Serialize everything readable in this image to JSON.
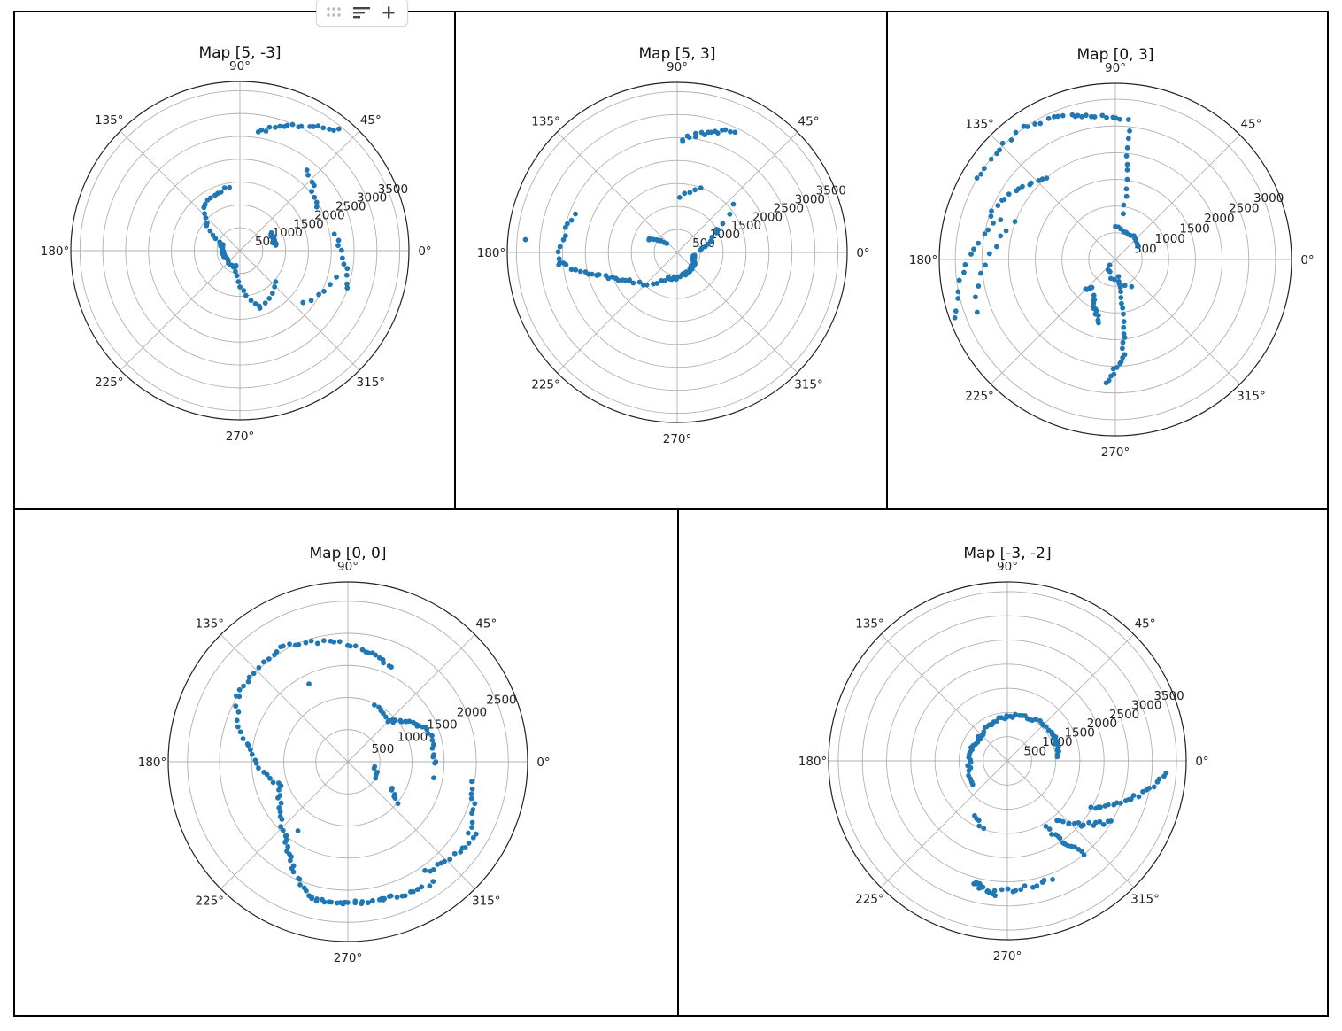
{
  "toolbar": {
    "items": [
      "drag-handle",
      "sort",
      "add"
    ]
  },
  "colors": {
    "points": "#1f77b4",
    "grid": "#b0b0b0",
    "border": "#000000"
  },
  "chart_data": [
    {
      "type": "scatter",
      "projection": "polar",
      "title": "Map [5, -3]",
      "rmax": 3700,
      "rticks": [
        500,
        1000,
        1500,
        2000,
        2500,
        3000,
        3500
      ],
      "angle_ticks": [
        "0°",
        "45°",
        "90°",
        "135°",
        "180°",
        "225°",
        "270°",
        "315°"
      ],
      "segments": [
        {
          "a": [
            255,
            200
          ],
          "r": [
            350,
            350
          ],
          "n": 9
        },
        {
          "a": [
            200,
            160
          ],
          "r": [
            350,
            420
          ],
          "n": 14
        },
        {
          "a": [
            160,
            130
          ],
          "r": [
            420,
            1250
          ],
          "n": 10
        },
        {
          "a": [
            130,
            100
          ],
          "r": [
            1250,
            1400
          ],
          "n": 9
        },
        {
          "a": [
            255,
            290
          ],
          "r": [
            350,
            1300
          ],
          "n": 10
        },
        {
          "a": [
            290,
            320
          ],
          "r": [
            1300,
            1050
          ],
          "n": 6
        },
        {
          "a": [
            8,
            30
          ],
          "r": [
            770,
            780
          ],
          "n": 12
        },
        {
          "a": [
            345,
            320
          ],
          "r": [
            2200,
            1800
          ],
          "n": 6
        },
        {
          "a": [
            10,
            -20
          ],
          "r": [
            2100,
            2500
          ],
          "n": 10
        },
        {
          "a": [
            82,
            50
          ],
          "r": [
            2600,
            3400
          ],
          "n": 18
        },
        {
          "a": [
            50,
            30
          ],
          "r": [
            2300,
            1900
          ],
          "n": 8
        }
      ]
    },
    {
      "type": "scatter",
      "projection": "polar",
      "title": "Map [5, 3]",
      "rmax": 3700,
      "rticks": [
        500,
        1000,
        1500,
        2000,
        2500,
        3000,
        3500
      ],
      "angle_ticks": [
        "0°",
        "45°",
        "90°",
        "135°",
        "180°",
        "225°",
        "270°",
        "315°"
      ],
      "segments": [
        {
          "a": [
            350,
            330
          ],
          "r": [
            350,
            400
          ],
          "n": 8
        },
        {
          "a": [
            330,
            290
          ],
          "r": [
            420,
            500
          ],
          "n": 10
        },
        {
          "a": [
            290,
            250
          ],
          "r": [
            500,
            600
          ],
          "n": 10
        },
        {
          "a": [
            250,
            210
          ],
          "r": [
            600,
            1200
          ],
          "n": 10
        },
        {
          "a": [
            210,
            195
          ],
          "r": [
            1200,
            1800
          ],
          "n": 10
        },
        {
          "a": [
            195,
            185
          ],
          "r": [
            1800,
            2600
          ],
          "n": 10
        },
        {
          "a": [
            185,
            160
          ],
          "r": [
            2600,
            2400
          ],
          "n": 10
        },
        {
          "a": [
            5,
            30
          ],
          "r": [
            500,
            1000
          ],
          "n": 8
        },
        {
          "a": [
            30,
            40
          ],
          "r": [
            1000,
            1600
          ],
          "n": 4
        },
        {
          "a": [
            88,
            70
          ],
          "r": [
            1200,
            1500
          ],
          "n": 5
        },
        {
          "a": [
            88,
            65
          ],
          "r": [
            2450,
            2900
          ],
          "n": 16
        },
        {
          "a": [
            140,
            155
          ],
          "r": [
            300,
            700
          ],
          "n": 8
        },
        {
          "a": [
            175,
            178
          ],
          "r": [
            3300,
            3300
          ],
          "n": 1
        }
      ]
    },
    {
      "type": "scatter",
      "projection": "polar",
      "title": "Map [0, 3]",
      "rmax": 3300,
      "rticks": [
        500,
        1000,
        1500,
        2000,
        2500,
        3000
      ],
      "angle_ticks": [
        "0°",
        "45°",
        "90°",
        "135°",
        "180°",
        "225°",
        "270°",
        "315°"
      ],
      "segments": [
        {
          "a": [
            225,
            300
          ],
          "r": [
            150,
            600
          ],
          "n": 8
        },
        {
          "a": [
            30,
            90
          ],
          "r": [
            500,
            600
          ],
          "n": 12
        },
        {
          "a": [
            80,
            85
          ],
          "r": [
            900,
            2600
          ],
          "n": 12
        },
        {
          "a": [
            88,
            105
          ],
          "r": [
            2600,
            2800
          ],
          "n": 10
        },
        {
          "a": [
            105,
            125
          ],
          "r": [
            2800,
            3000
          ],
          "n": 10
        },
        {
          "a": [
            125,
            150
          ],
          "r": [
            3000,
            3000
          ],
          "n": 10
        },
        {
          "a": [
            130,
            160
          ],
          "r": [
            2000,
            2500
          ],
          "n": 14
        },
        {
          "a": [
            160,
            200
          ],
          "r": [
            2300,
            3200
          ],
          "n": 14
        },
        {
          "a": [
            160,
            200
          ],
          "r": [
            2000,
            2800
          ],
          "n": 10
        },
        {
          "a": [
            280,
            275
          ],
          "r": [
            300,
            1800
          ],
          "n": 15
        },
        {
          "a": [
            275,
            265
          ],
          "r": [
            1800,
            2300
          ],
          "n": 10
        },
        {
          "a": [
            255,
            240
          ],
          "r": [
            1200,
            800
          ],
          "n": 12
        },
        {
          "a": [
            230,
            225
          ],
          "r": [
            700,
            800
          ],
          "n": 6
        }
      ]
    },
    {
      "type": "scatter",
      "projection": "polar",
      "title": "Map [0, 0]",
      "rmax": 2800,
      "rticks": [
        500,
        1000,
        1500,
        2000,
        2500
      ],
      "angle_ticks": [
        "0°",
        "45°",
        "90°",
        "135°",
        "180°",
        "225°",
        "270°",
        "315°"
      ],
      "segments": [
        {
          "a": [
            350,
            330
          ],
          "r": [
            420,
            500
          ],
          "n": 5
        },
        {
          "a": [
            330,
            320
          ],
          "r": [
            780,
            1000
          ],
          "n": 6
        },
        {
          "a": [
            350,
            0
          ],
          "r": [
            1350,
            1350
          ],
          "n": 4
        },
        {
          "a": [
            0,
            25
          ],
          "r": [
            1350,
            1350
          ],
          "n": 10
        },
        {
          "a": [
            25,
            45
          ],
          "r": [
            1300,
            900
          ],
          "n": 14
        },
        {
          "a": [
            45,
            65
          ],
          "r": [
            900,
            1000
          ],
          "n": 6
        },
        {
          "a": [
            65,
            80
          ],
          "r": [
            1600,
            1750
          ],
          "n": 8
        },
        {
          "a": [
            80,
            120
          ],
          "r": [
            1750,
            2050
          ],
          "n": 16
        },
        {
          "a": [
            120,
            150
          ],
          "r": [
            2050,
            2000
          ],
          "n": 12
        },
        {
          "a": [
            150,
            170
          ],
          "r": [
            2000,
            1600
          ],
          "n": 8
        },
        {
          "a": [
            170,
            200
          ],
          "r": [
            1600,
            1100
          ],
          "n": 12
        },
        {
          "a": [
            200,
            230
          ],
          "r": [
            1100,
            1500
          ],
          "n": 12
        },
        {
          "a": [
            230,
            255
          ],
          "r": [
            1500,
            2200
          ],
          "n": 18
        },
        {
          "a": [
            255,
            285
          ],
          "r": [
            2200,
            2200
          ],
          "n": 22
        },
        {
          "a": [
            285,
            305
          ],
          "r": [
            2200,
            2300
          ],
          "n": 12
        },
        {
          "a": [
            305,
            330
          ],
          "r": [
            2100,
            2300
          ],
          "n": 14
        },
        {
          "a": [
            330,
            350
          ],
          "r": [
            2200,
            1950
          ],
          "n": 10
        }
      ]
    },
    {
      "type": "scatter",
      "projection": "polar",
      "title": "Map [-3, -2]",
      "rmax": 3700,
      "rticks": [
        500,
        1000,
        1500,
        2000,
        2500,
        3000,
        3500
      ],
      "angle_ticks": [
        "0°",
        "45°",
        "90°",
        "135°",
        "180°",
        "225°",
        "270°",
        "315°"
      ],
      "segments": [
        {
          "a": [
            5,
            30
          ],
          "r": [
            1050,
            1100
          ],
          "n": 12
        },
        {
          "a": [
            30,
            90
          ],
          "r": [
            1100,
            920
          ],
          "n": 18
        },
        {
          "a": [
            90,
            140
          ],
          "r": [
            920,
            750
          ],
          "n": 14
        },
        {
          "a": [
            140,
            190
          ],
          "r": [
            750,
            800
          ],
          "n": 14
        },
        {
          "a": [
            190,
            215
          ],
          "r": [
            800,
            900
          ],
          "n": 6
        },
        {
          "a": [
            240,
            250
          ],
          "r": [
            1300,
            1500
          ],
          "n": 5
        },
        {
          "a": [
            255,
            265
          ],
          "r": [
            2600,
            2800
          ],
          "n": 16
        },
        {
          "a": [
            265,
            290
          ],
          "r": [
            2700,
            2600
          ],
          "n": 12
        },
        {
          "a": [
            300,
            310
          ],
          "r": [
            1600,
            2500
          ],
          "n": 14
        },
        {
          "a": [
            310,
            330
          ],
          "r": [
            1600,
            2500
          ],
          "n": 16
        },
        {
          "a": [
            330,
            355
          ],
          "r": [
            2000,
            3300
          ],
          "n": 22
        }
      ]
    }
  ]
}
